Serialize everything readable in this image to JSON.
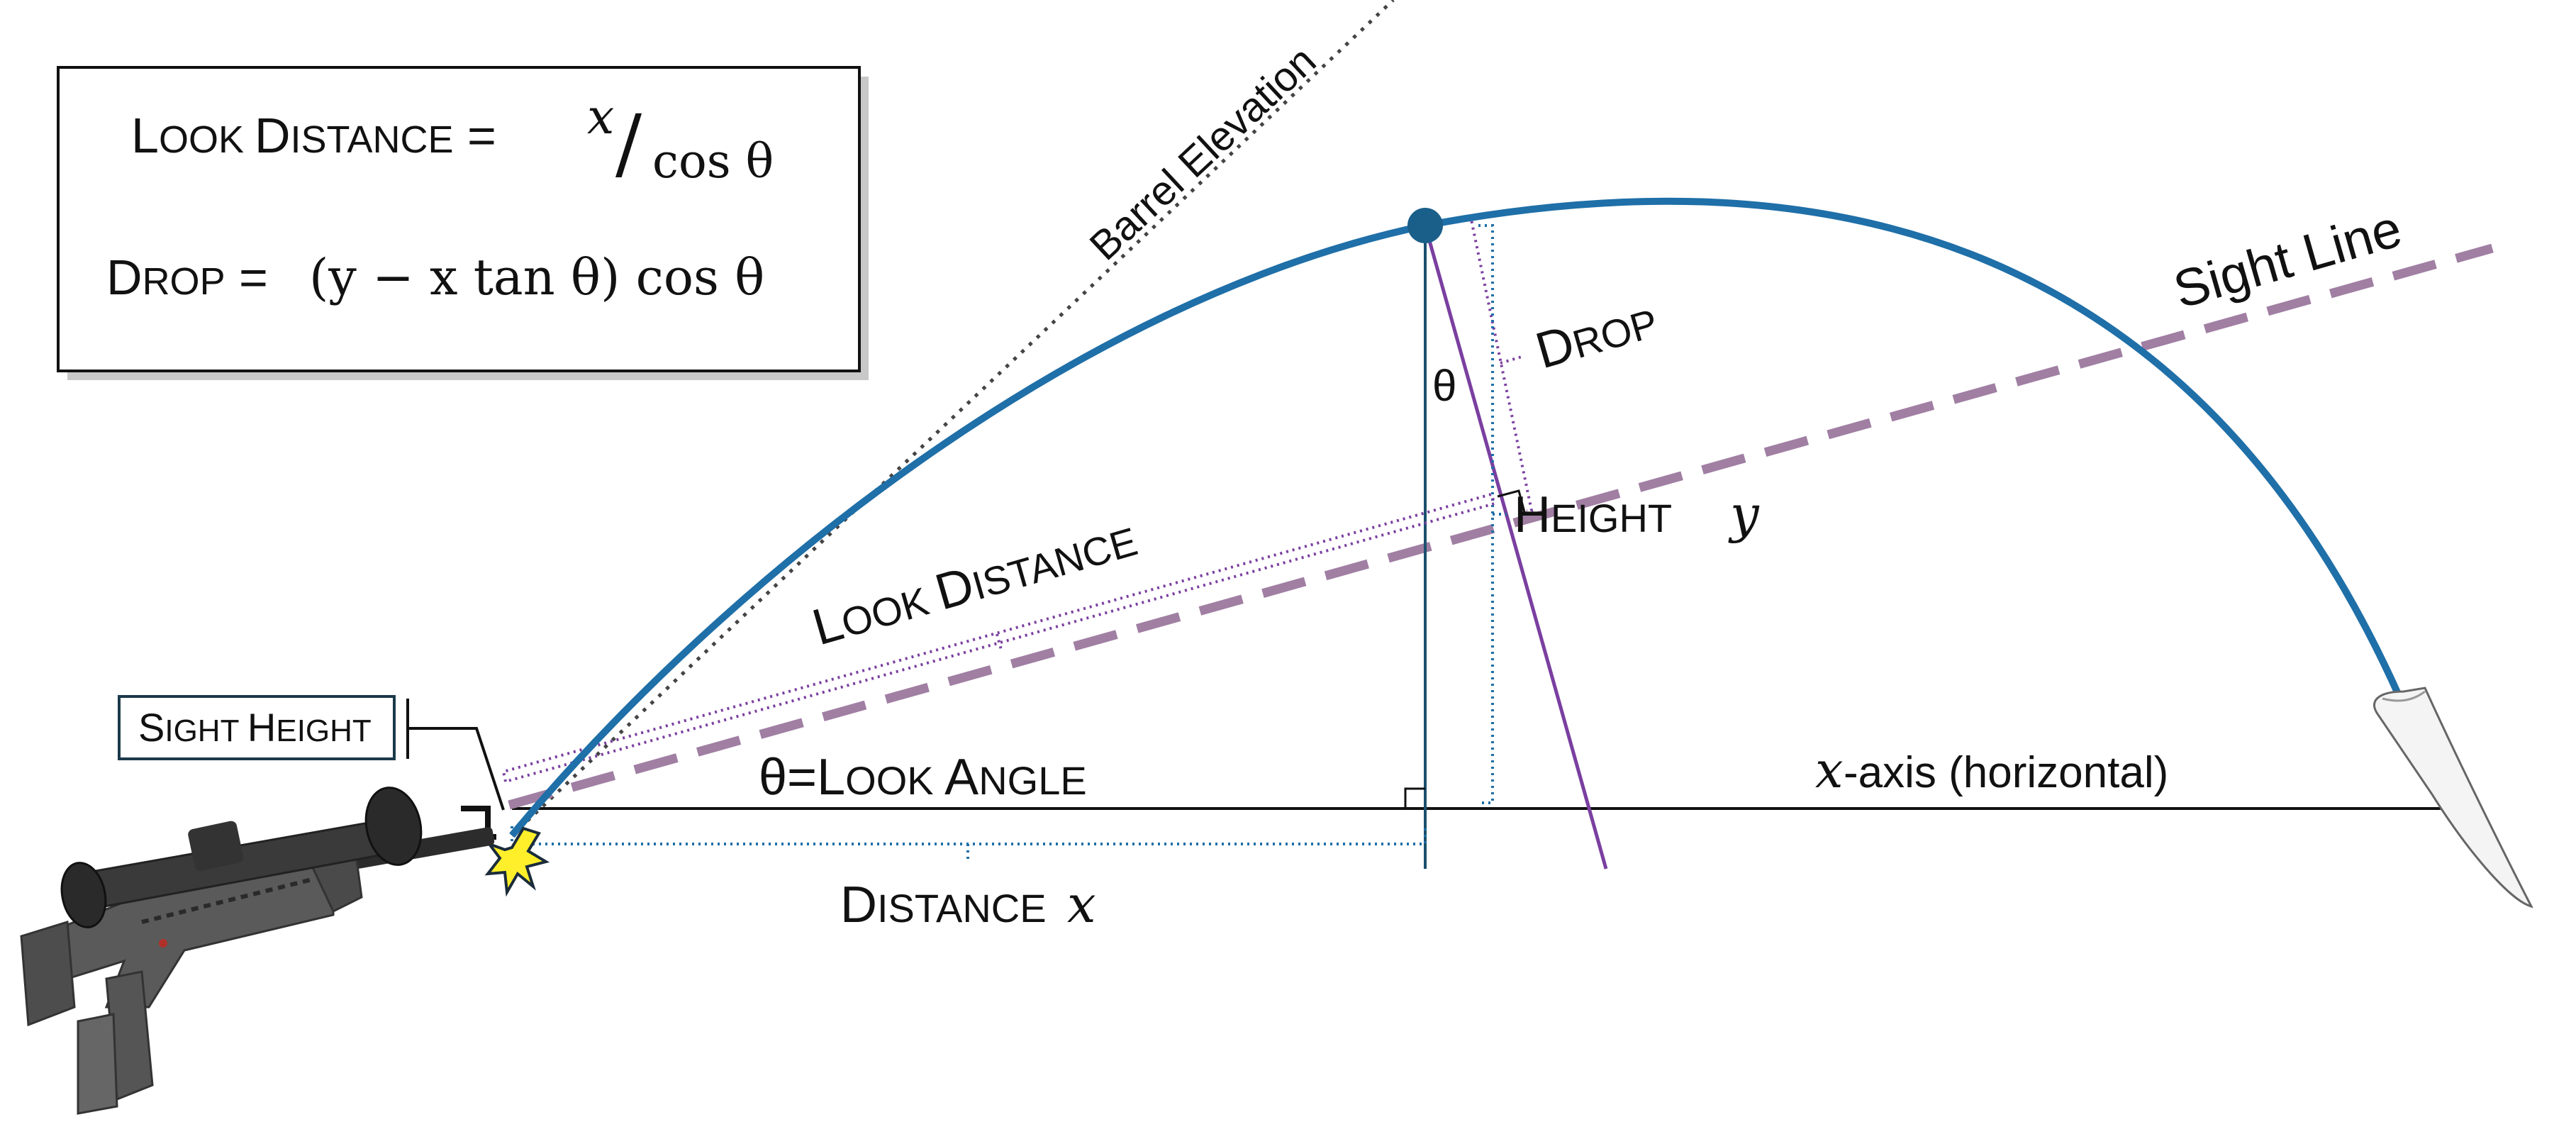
{
  "formula_box": {
    "look_distance_cap": "L",
    "look_distance_rest": "OOK ",
    "look_distance_cap2": "D",
    "look_distance_rest2": "ISTANCE",
    "equals": " = ",
    "x_var": "x",
    "slash": "/",
    "cos_theta": "cos θ",
    "drop_cap": "D",
    "drop_rest": "ROP",
    "drop_formula": "(y − x tan θ) cos θ"
  },
  "labels": {
    "barrel_elevation": "Barrel Elevation",
    "sight_line": "Sight Line",
    "drop_cap": "D",
    "drop_rest": "ROP",
    "theta": "θ",
    "height_cap": "H",
    "height_rest": "EIGHT",
    "height_var": "y",
    "look_distance_cap": "L",
    "look_distance_rest": "OOK ",
    "look_distance_cap2": "D",
    "look_distance_rest2": "ISTANCE",
    "sight_height_cap": "S",
    "sight_height_rest": "IGHT ",
    "sight_height_cap2": "H",
    "sight_height_rest2": "EIGHT",
    "look_angle_prefix": "θ=",
    "look_angle_cap": "L",
    "look_angle_rest": "OOK ",
    "look_angle_cap2": "A",
    "look_angle_rest2": "NGLE",
    "x_axis_var": "x",
    "x_axis_text": "-axis (horizontal)",
    "distance_cap": "D",
    "distance_rest": "ISTANCE ",
    "distance_var": "x"
  },
  "colors": {
    "trajectory": "#1f6fa8",
    "apex_dot": "#1a5f8a",
    "sight_line": "#a07fa3",
    "look_normal": "#7a3fa0",
    "dim_purple": "#7a3fa0",
    "dim_blue": "#1f6fa8",
    "vertical": "#1b4f6e",
    "text": "#111111"
  }
}
